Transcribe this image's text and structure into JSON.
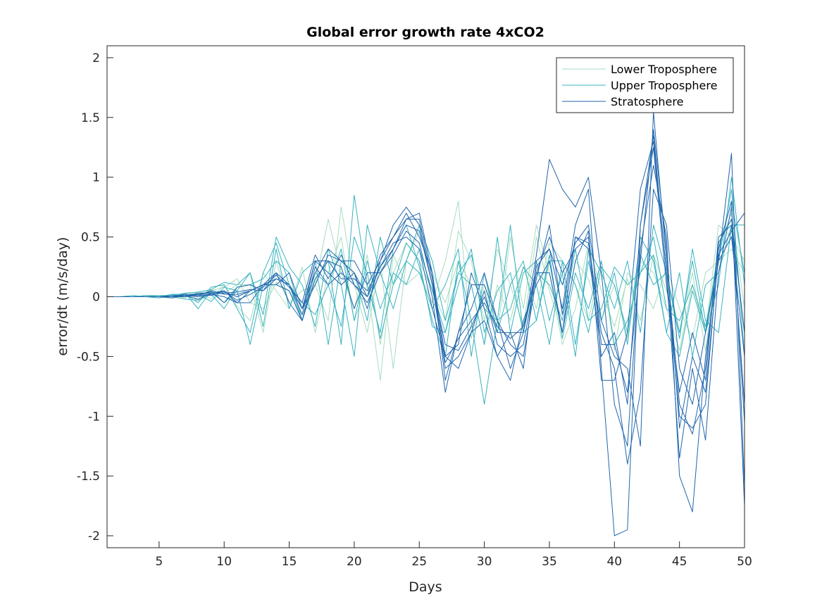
{
  "chart_data": {
    "type": "line",
    "title": "Global error growth rate 4xCO2",
    "xlabel": "Days",
    "ylabel": "error/dt (m/s/day)",
    "xlim": [
      1,
      50
    ],
    "ylim": [
      -2.1,
      2.1
    ],
    "xticks": [
      5,
      10,
      15,
      20,
      25,
      30,
      35,
      40,
      45,
      50
    ],
    "yticks": [
      -2,
      -1.5,
      -1,
      -0.5,
      0,
      0.5,
      1,
      1.5,
      2
    ],
    "grid": false,
    "legend_position": "top-right",
    "x": [
      1,
      2,
      3,
      4,
      5,
      6,
      7,
      8,
      9,
      10,
      11,
      12,
      13,
      14,
      15,
      16,
      17,
      18,
      19,
      20,
      21,
      22,
      23,
      24,
      25,
      26,
      27,
      28,
      29,
      30,
      31,
      32,
      33,
      34,
      35,
      36,
      37,
      38,
      39,
      40,
      41,
      42,
      43,
      44,
      45,
      46,
      47,
      48,
      49,
      50
    ],
    "groups": [
      {
        "name": "Lower Troposphere",
        "color": "#a8dcc0",
        "members": [
          [
            0,
            0,
            0,
            0,
            -0.01,
            0,
            0.02,
            0.03,
            0.05,
            0.08,
            0.15,
            -0.05,
            -0.1,
            0.12,
            0.05,
            -0.15,
            0.1,
            0.65,
            0.2,
            -0.1,
            0.35,
            -0.4,
            0.2,
            0.45,
            0.3,
            0.05,
            -0.2,
            0.55,
            0.3,
            -0.2,
            0.4,
            0.1,
            -0.25,
            0.5,
            0.05,
            -0.3,
            0.3,
            0.15,
            -0.2,
            0.1,
            -0.35,
            0.3,
            0.2,
            -0.1,
            -0.45,
            0.1,
            -0.3,
            0.6,
            0.5,
            0.3
          ],
          [
            0,
            0,
            0,
            0.01,
            0,
            0.01,
            -0.01,
            0.04,
            -0.02,
            0.1,
            -0.08,
            -0.2,
            0.2,
            0.05,
            -0.1,
            0.25,
            -0.3,
            0.2,
            0.5,
            -0.2,
            0.1,
            -0.7,
            0.35,
            0.1,
            0.2,
            -0.05,
            0.3,
            0.8,
            -0.35,
            0.1,
            -0.3,
            0.5,
            -0.1,
            0.6,
            0.2,
            -0.4,
            -0.1,
            0.45,
            0.05,
            -0.25,
            0.15,
            -0.2,
            0.35,
            0.05,
            -0.3,
            0.2,
            -0.45,
            0.4,
            0.7,
            -0.1
          ],
          [
            0,
            0,
            0,
            0,
            0.01,
            -0.01,
            0.02,
            -0.03,
            0.06,
            0.03,
            0.1,
            0.1,
            -0.3,
            0.3,
            -0.05,
            0.05,
            0.1,
            -0.2,
            0.75,
            0.1,
            -0.3,
            0.3,
            -0.6,
            0.3,
            0.55,
            0.2,
            -0.05,
            0.3,
            0.1,
            -0.4,
            0.1,
            -0.2,
            0.25,
            -0.1,
            0.45,
            0.3,
            0.1,
            -0.2,
            0.3,
            -0.45,
            0.2,
            0.1,
            -0.1,
            0.25,
            -0.1,
            -0.35,
            0.2,
            0.3,
            0.4,
            0.2
          ]
        ]
      },
      {
        "name": "Upper Troposphere",
        "color": "#38b3c0",
        "members": [
          [
            0,
            0,
            0.01,
            0,
            0,
            0.02,
            0.02,
            -0.05,
            0.08,
            0.1,
            -0.1,
            -0.3,
            0.2,
            0.45,
            0.1,
            -0.2,
            0.15,
            0.3,
            -0.4,
            0.85,
            0.1,
            -0.3,
            0.4,
            0.6,
            0.25,
            -0.2,
            -0.5,
            0.3,
            -0.2,
            -0.9,
            -0.2,
            0.6,
            -0.3,
            -0.2,
            0.35,
            -0.35,
            0.2,
            -0.1,
            0.3,
            -0.4,
            -0.2,
            0.2,
            0.35,
            -0.3,
            -0.5,
            0.05,
            -0.3,
            0.1,
            1.0,
            0.1
          ],
          [
            0,
            0,
            0,
            0.01,
            0.01,
            0.01,
            0.03,
            -0.1,
            0.05,
            -0.05,
            0.05,
            0.2,
            -0.15,
            0.5,
            0.25,
            0.1,
            -0.25,
            0.4,
            0.1,
            -0.5,
            0.6,
            0.2,
            -0.1,
            0.3,
            0.6,
            0.3,
            -0.2,
            0.2,
            0.1,
            -0.4,
            0.5,
            -0.3,
            0.2,
            0.3,
            -0.2,
            0.2,
            -0.5,
            0.4,
            0.2,
            -0.1,
            0.3,
            -0.3,
            0.6,
            0.2,
            -0.35,
            0.4,
            -0.2,
            -0.3,
            0.6,
            0.6
          ],
          [
            0,
            0,
            0,
            0,
            -0.01,
            0.02,
            0.01,
            0.02,
            -0.04,
            0.08,
            0.05,
            -0.4,
            0.1,
            0.2,
            0.1,
            -0.05,
            -0.15,
            0.1,
            0.4,
            -0.2,
            0.3,
            -0.1,
            0.2,
            0.1,
            0.4,
            0.05,
            -0.3,
            0.1,
            0.4,
            -0.3,
            0.05,
            0.2,
            -0.3,
            0.2,
            0.1,
            -0.2,
            0.4,
            -0.2,
            -0.1,
            0.25,
            0.1,
            0.2,
            0.5,
            -0.1,
            -0.2,
            0.1,
            -0.25,
            0.3,
            0.9,
            -0.5
          ],
          [
            0,
            0,
            0,
            0.01,
            0,
            0.01,
            0.03,
            0.04,
            0.06,
            0.12,
            0.1,
            0.2,
            -0.25,
            0.4,
            -0.1,
            0.2,
            0.3,
            -0.4,
            0.3,
            0.2,
            -0.2,
            0.5,
            0.1,
            0.3,
            0.2,
            -0.1,
            0.1,
            0.4,
            -0.5,
            0.2,
            -0.3,
            0.1,
            0.3,
            -0.2,
            0.3,
            0.3,
            -0.4,
            0.3,
            -0.2,
            0.2,
            -0.4,
            0.5,
            0.3,
            -0.3,
            0.2,
            -0.5,
            0.1,
            0.2,
            0.6,
            -0.3
          ],
          [
            0,
            0,
            0,
            0,
            0,
            0,
            -0.02,
            -0.03,
            0.02,
            -0.1,
            0.08,
            0.1,
            0.15,
            0.3,
            0.2,
            -0.2,
            0.2,
            0.1,
            -0.25,
            0.5,
            0.2,
            -0.35,
            0.1,
            0.45,
            0.3,
            -0.25,
            -0.3,
            0.2,
            0.35,
            -0.1,
            -0.2,
            -0.1,
            0.25,
            0.1,
            -0.4,
            0.3,
            0.1,
            -0.3,
            0.25,
            0.1,
            -0.3,
            0.35,
            0.1,
            0.2,
            -0.3,
            0.3,
            -0.3,
            0.4,
            0.8,
            0.2
          ]
        ]
      },
      {
        "name": "Stratosphere",
        "color": "#2166ac",
        "members": [
          [
            0,
            0,
            0,
            0,
            0,
            0.01,
            0.01,
            -0.02,
            0.03,
            0.05,
            -0.05,
            0.05,
            0.1,
            0.15,
            0.1,
            -0.1,
            0.2,
            0.4,
            0.3,
            0.2,
            -0.1,
            0.3,
            0.5,
            0.7,
            0.5,
            0.2,
            -0.7,
            -0.3,
            -0.1,
            0.2,
            -0.2,
            -0.6,
            -0.3,
            0.35,
            1.15,
            0.9,
            0.75,
            1.0,
            0.2,
            -0.9,
            -1.25,
            0.4,
            1.1,
            0.5,
            -1.5,
            -1.8,
            -0.5,
            0.3,
            1.2,
            -1.6
          ],
          [
            0,
            0,
            0,
            0,
            0,
            0,
            0.02,
            0.02,
            0.04,
            -0.05,
            0.08,
            0.1,
            0.05,
            0.2,
            -0.05,
            -0.2,
            0.15,
            0.3,
            0.25,
            -0.1,
            0.2,
            0.2,
            0.4,
            0.65,
            0.7,
            0.2,
            -0.5,
            -0.4,
            0.2,
            -0.1,
            -0.5,
            -0.3,
            -0.6,
            0.3,
            0.4,
            -0.1,
            0.6,
            0.9,
            -0.6,
            -2.0,
            -1.95,
            0.6,
            1.35,
            0.2,
            -1.0,
            -1.1,
            -0.9,
            0.4,
            0.8,
            -1.75
          ],
          [
            0,
            0,
            0,
            0,
            0,
            0,
            0,
            0.03,
            0.03,
            0.04,
            0,
            0.05,
            0.1,
            0.2,
            0.1,
            -0.15,
            0.3,
            0.2,
            0.1,
            0.2,
            0,
            0.25,
            0.45,
            0.5,
            0.4,
            -0.1,
            -0.5,
            -0.6,
            -0.3,
            -0.2,
            -0.5,
            -0.7,
            -0.2,
            0.1,
            0.3,
            -0.3,
            0.5,
            0.4,
            -0.5,
            -0.3,
            -0.9,
            0.6,
            1.25,
            0.1,
            -0.8,
            -0.3,
            -0.7,
            0.5,
            0.6,
            -0.9
          ],
          [
            0,
            0,
            0,
            0,
            0,
            -0.01,
            0.01,
            0,
            0.02,
            0,
            -0.05,
            -0.05,
            0.1,
            0.1,
            0.2,
            -0.1,
            0.1,
            0.35,
            0.3,
            0.3,
            0.1,
            0.3,
            0.6,
            0.75,
            0.6,
            0.1,
            -0.6,
            -0.5,
            -0.3,
            0.05,
            -0.4,
            -0.5,
            -0.4,
            0.2,
            0.2,
            -0.3,
            0.3,
            0.55,
            -0.7,
            -0.7,
            -0.3,
            0.9,
            1.3,
            0.2,
            -1.35,
            -0.6,
            -1.2,
            0.2,
            0.75,
            -1.05
          ],
          [
            0,
            0,
            0,
            0,
            0,
            0,
            0.01,
            0.01,
            0.05,
            0.02,
            0.02,
            0.05,
            0.1,
            0.1,
            0.05,
            -0.2,
            0.25,
            0.1,
            0.2,
            0.1,
            -0.05,
            0.2,
            0.35,
            0.55,
            0.45,
            0,
            -0.8,
            -0.3,
            0.1,
            0.1,
            -0.2,
            -0.4,
            -0.5,
            0.15,
            0.6,
            -0.15,
            0.5,
            0.45,
            -0.3,
            -0.6,
            -1.4,
            -0.8,
            0.9,
            0.6,
            -0.6,
            -0.9,
            -0.3,
            0.3,
            0.5,
            -0.5
          ],
          [
            0,
            0,
            0,
            0,
            0,
            0,
            0,
            0.02,
            0.02,
            0.03,
            0.04,
            0.06,
            0.05,
            0.15,
            0.1,
            -0.1,
            0.3,
            0.3,
            0.15,
            0.15,
            0.05,
            0.25,
            0.4,
            0.6,
            0.55,
            0.1,
            -0.4,
            -0.45,
            -0.25,
            0,
            -0.3,
            -0.3,
            -0.3,
            0.25,
            0.4,
            0.1,
            0.45,
            0.6,
            -0.2,
            -0.5,
            -0.6,
            -1.25,
            1.55,
            0.3,
            -0.9,
            -1.15,
            -0.6,
            0.45,
            0.65,
            -0.3
          ],
          [
            0,
            0,
            0,
            0,
            0,
            0,
            0.01,
            0.01,
            0.01,
            0.05,
            -0.03,
            0.02,
            0.08,
            0.18,
            0.08,
            -0.05,
            0.35,
            0.15,
            0.35,
            0.1,
            0,
            0.35,
            0.5,
            0.65,
            0.65,
            0.15,
            -0.55,
            -0.35,
            -0.2,
            -0.05,
            -0.25,
            -0.35,
            -0.25,
            0.2,
            0.5,
            0.2,
            0.4,
            0.5,
            -0.4,
            -0.4,
            -0.8,
            0.3,
            1.4,
            0.4,
            -1.1,
            -0.5,
            -0.8,
            0.35,
            0.55,
            0.7
          ]
        ]
      }
    ]
  }
}
